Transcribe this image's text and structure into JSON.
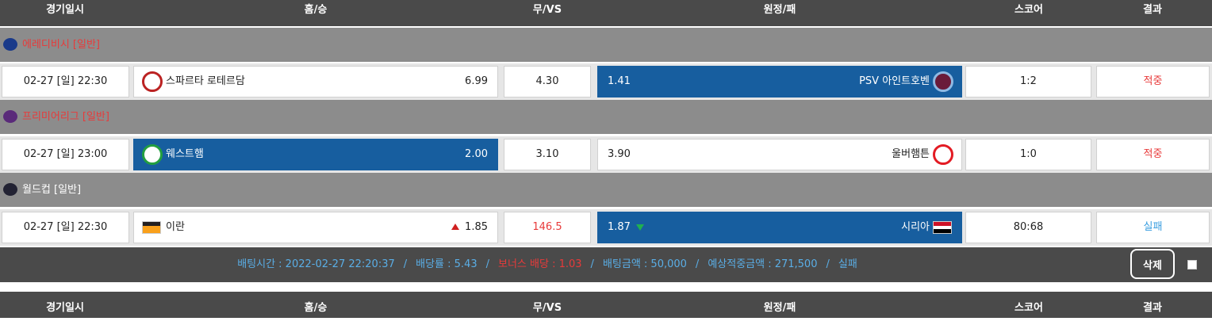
{
  "header": {
    "columns": [
      "경기일시",
      "홈/승",
      "무/VS",
      "원정/패",
      "스코어",
      "결과"
    ]
  },
  "leagues": [
    {
      "name": "에레디비시 [일반]",
      "name_color": "#e83a3a",
      "match": {
        "date": "02-27 [일] 22:30",
        "home_name": "스파르타 로테르담",
        "home_odds": "6.99",
        "draw": "4.30",
        "away_odds": "1.41",
        "away_name": "PSV 아인트호벤",
        "selected": "away",
        "score": "1:2",
        "result": "적중",
        "result_color": "#e83a3a"
      }
    },
    {
      "name": "프리미어리그 [일반]",
      "name_color": "#e83a3a",
      "match": {
        "date": "02-27 [일] 23:00",
        "home_name": "웨스트햄",
        "home_odds": "2.00",
        "draw": "3.10",
        "away_odds": "3.90",
        "away_name": "울버햄튼",
        "selected": "home",
        "score": "1:0",
        "result": "적중",
        "result_color": "#e83a3a"
      }
    },
    {
      "name": "월드컵 [일반]",
      "name_color": "#ffffff",
      "match": {
        "date": "02-27 [일] 22:30",
        "home_name": "이란",
        "home_odds": "1.85",
        "home_arrow": "up",
        "draw": "146.5",
        "draw_color": "#e83a3a",
        "away_odds": "1.87",
        "away_arrow": "down",
        "away_name": "시리아",
        "selected": "away",
        "score": "80:68",
        "result": "실패",
        "result_color": "#3a9ee0"
      }
    }
  ],
  "summary": {
    "separator": "/",
    "items": [
      {
        "text": "배팅시간 : 2022-02-27 22:20:37",
        "color": "#5aaee6"
      },
      {
        "text": "배당률 : 5.43",
        "color": "#5aaee6"
      },
      {
        "text": "보너스 배당 : 1.03",
        "color": "#e83a3a"
      },
      {
        "text": "배팅금액 : 50,000",
        "color": "#5aaee6"
      },
      {
        "text": "예상적중금액 : 271,500",
        "color": "#5aaee6"
      },
      {
        "text": "실패",
        "color": "#5aaee6"
      }
    ],
    "button": "삭제"
  }
}
